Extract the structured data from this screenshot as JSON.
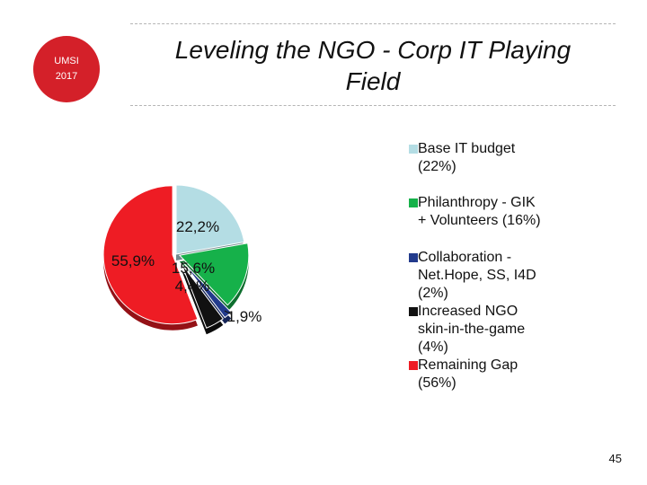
{
  "badge": {
    "line1": "UMSI",
    "line2": "2017"
  },
  "title": {
    "line1": "Leveling the NGO - Corp IT Playing",
    "line2": "Field"
  },
  "page_number": "45",
  "chart_data": {
    "type": "pie",
    "title": "",
    "legend_placement": "right",
    "slices": [
      {
        "legend": "Base IT budget\n(22%)",
        "value": 22.2,
        "label": "22,2%",
        "color": "#b4dde4"
      },
      {
        "legend": "Philanthropy - GIK\n+ Volunteers (16%)",
        "value": 15.6,
        "label": "15,6%",
        "color": "#16b14a"
      },
      {
        "legend": "Collaboration -\nNet.Hope, SS, I4D\n(2%)",
        "value": 1.9,
        "label": "1,9%",
        "color": "#223a8c"
      },
      {
        "legend": "Increased NGO\nskin-in-the-game\n(4%)",
        "value": 4.4,
        "label": "4,4%",
        "color": "#111111"
      },
      {
        "legend": "Remaining Gap\n(56%)",
        "value": 55.9,
        "label": "55,9%",
        "color": "#ee1c24"
      }
    ]
  }
}
